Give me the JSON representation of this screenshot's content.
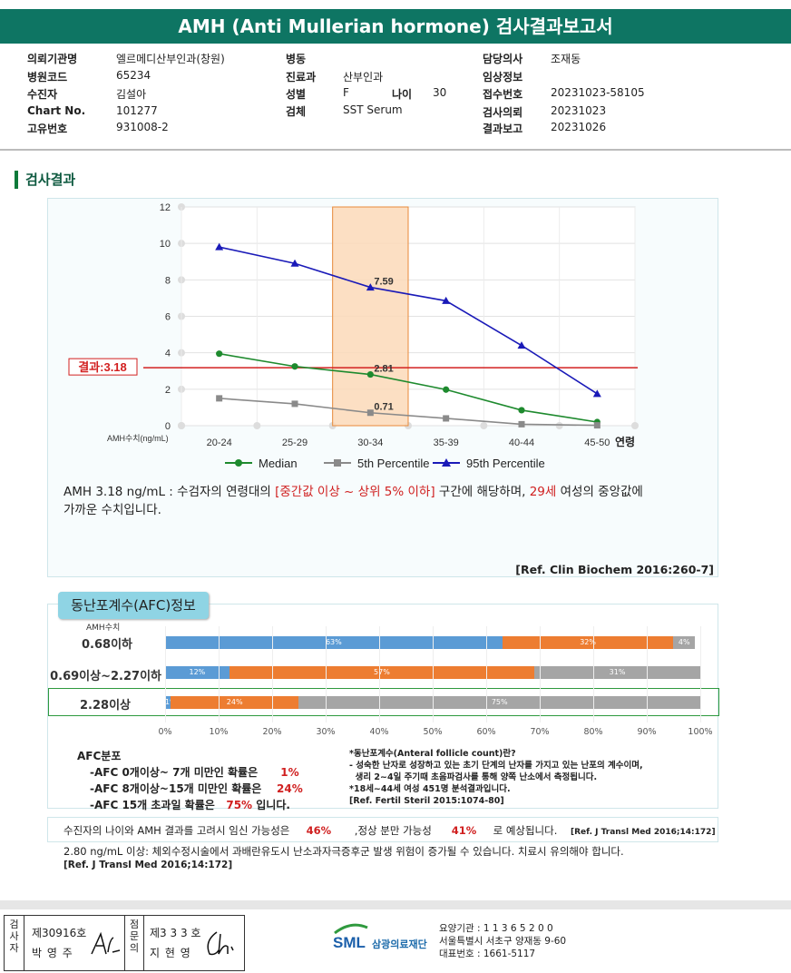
{
  "header": {
    "title": "AMH (Anti Mullerian hormone) 검사결과보고서"
  },
  "info": {
    "col1": [
      {
        "label": "의뢰기관명",
        "value": "엘르메디산부인과(창원)"
      },
      {
        "label": "병원코드",
        "value": "65234"
      },
      {
        "label": "수진자",
        "value": "김설아"
      },
      {
        "label": "Chart No.",
        "value": "101277"
      },
      {
        "label": "고유번호",
        "value": "931008-2"
      }
    ],
    "col2": [
      {
        "label": "병동",
        "value": ""
      },
      {
        "label": "진료과",
        "value": "산부인과"
      },
      {
        "label": "성별",
        "value": "F"
      },
      {
        "label": "검체",
        "value": "SST Serum"
      }
    ],
    "age": {
      "label": "나이",
      "value": "30"
    },
    "col3": [
      {
        "label": "담당의사",
        "value": "조재동"
      },
      {
        "label": "임상정보",
        "value": ""
      },
      {
        "label": "접수번호",
        "value": "20231023-58105"
      },
      {
        "label": "검사의뢰",
        "value": "20231023"
      },
      {
        "label": "결과보고",
        "value": "20231026"
      }
    ]
  },
  "section_title": "검사결과",
  "chart_data": {
    "type": "line",
    "categories": [
      "20-24",
      "25-29",
      "30-34",
      "35-39",
      "40-44",
      "45-50"
    ],
    "xlabel": "연령",
    "ylabel": "AMH수치(ng/mL)",
    "ylim": [
      0,
      12
    ],
    "yticks": [
      0,
      2,
      4,
      6,
      8,
      10,
      12
    ],
    "highlight_category": "30-34",
    "result_line": {
      "label": "결과:3.18",
      "value": 3.18
    },
    "series": [
      {
        "name": "Median",
        "color": "#1e8a2e",
        "marker": "circle",
        "values": [
          3.95,
          3.25,
          2.81,
          1.98,
          0.85,
          0.2
        ]
      },
      {
        "name": "5th Percentile",
        "color": "#8a8a8a",
        "marker": "square",
        "values": [
          1.5,
          1.2,
          0.71,
          0.4,
          0.08,
          0.02
        ]
      },
      {
        "name": "95th Percentile",
        "color": "#1a1ab8",
        "marker": "triangle",
        "values": [
          9.8,
          8.9,
          7.59,
          6.85,
          4.4,
          1.75
        ]
      }
    ],
    "data_labels": [
      {
        "series": 2,
        "index": 2,
        "text": "7.59"
      },
      {
        "series": 0,
        "index": 2,
        "text": "2.81"
      },
      {
        "series": 1,
        "index": 2,
        "text": "0.71"
      }
    ],
    "legend_position": "bottom",
    "grid": true
  },
  "summary": {
    "p1": "AMH  3.18 ng/mL : 수검자의 연령대의 ",
    "p2": "[중간값 이상 ~ 상위 5% 이하]",
    "p3": " 구간에 해당하며, ",
    "p4": "29세",
    "p5": " 여성의 중앙값에",
    "p6": "가까운 수치입니다."
  },
  "ref1": "[Ref. Clin Biochem 2016:260-7]",
  "afc": {
    "title": "동난포계수(AFC)정보",
    "amh_label": "AMH수치",
    "rows": [
      {
        "label": "0.68이하",
        "segments": [
          63,
          32,
          4
        ],
        "texts": [
          "63%",
          "32%",
          "4%"
        ]
      },
      {
        "label": "0.69이상~2.27이하",
        "segments": [
          12,
          57,
          31
        ],
        "texts": [
          "12%",
          "57%",
          "31%"
        ]
      },
      {
        "label": "2.28이상",
        "segments": [
          1,
          24,
          75
        ],
        "texts": [
          "1%",
          "24%",
          "75%"
        ]
      }
    ],
    "colors": [
      "#5b9bd5",
      "#ed7d31",
      "#a5a5a5"
    ],
    "xticks": [
      "0%",
      "10%",
      "20%",
      "30%",
      "40%",
      "50%",
      "60%",
      "70%",
      "80%",
      "90%",
      "100%"
    ],
    "dist_title": "AFC분포",
    "dist": [
      {
        "a": "-AFC  0개이상~ 7개 미만인 확률은",
        "v": "1%",
        "b": ""
      },
      {
        "a": "-AFC  8개이상~15개 미만인 확률은",
        "v": "24%",
        "b": ""
      },
      {
        "a": "-AFC  15개 초과일 확률은",
        "v": "75%",
        "b": " 입니다."
      }
    ],
    "note1": "*동난포계수(Anteral  follicle  count)란?",
    "note2": "- 성숙한 난자로 성장하고 있는 초기 단계의 난자를 가지고 있는 난포의 계수이며,",
    "note3": "  생리 2~4일 주기때 초음파검사를 통해 양쪽 난소에서 측정됩니다.",
    "note4": "*18세~44세 여성 451명 분석결과입니다.",
    "note5": "[Ref. Fertil Steril 2015:1074-80]"
  },
  "pregnancy": {
    "a": "수진자의  나이와 AMH 결과를 고려시 임신 가능성은",
    "v1": "46%",
    "b": ",정상 분만 가능성",
    "v2": "41%",
    "c": "로 예상됩니다.",
    "ref": "[Ref. J Transl Med 2016;14:172]"
  },
  "warning": {
    "text": "2.80  ng/mL  이상: 체외수정시술에서 과배란유도시 난소과자극증후군 발생 위험이 증가될 수 있습니다. 치료시 유의해야 합니다.",
    "ref": "[Ref. J Transl Med 2016;14:172]"
  },
  "footer": {
    "v1": "검사자",
    "no1": "제30916호",
    "name1": "박 영 주",
    "v2": "점문의",
    "no2": "제3 3 3 호",
    "name2": "지 현 영",
    "logo": "SML",
    "org_name": "삼광의료재단",
    "org1": "요양기관 : 1 1 3 6 5 2 0 0",
    "org2": "서울특별시 서초구 양재동 9-60",
    "org3": "대표번호 : 1661-5117"
  }
}
